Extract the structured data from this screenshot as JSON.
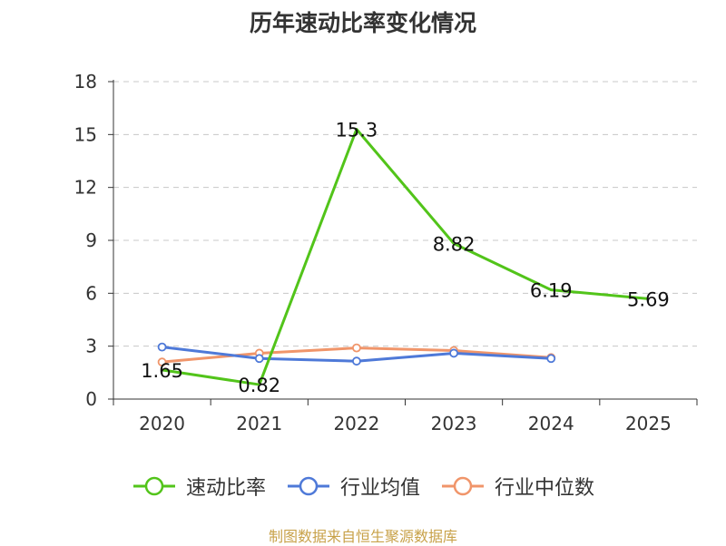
{
  "chart_data": {
    "type": "line",
    "title": "历年速动比率变化情况",
    "categories": [
      "2020",
      "2021",
      "2022",
      "2023",
      "2024",
      "2025"
    ],
    "ylim": [
      0,
      18
    ],
    "yticks": [
      "0",
      "3",
      "6",
      "9",
      "12",
      "15",
      "18"
    ],
    "grid": true,
    "legend_position": "bottom",
    "series": [
      {
        "name": "速动比率",
        "color": "#52c41a",
        "values": [
          1.65,
          0.82,
          15.3,
          8.82,
          6.19,
          5.69
        ],
        "labels": [
          "1.65",
          "0.82",
          "15.3",
          "8.82",
          "6.19",
          "5.69"
        ],
        "markers": false
      },
      {
        "name": "行业均值",
        "color": "#4e79d8",
        "values": [
          2.95,
          2.3,
          2.15,
          2.6,
          2.3,
          null
        ],
        "markers": true
      },
      {
        "name": "行业中位数",
        "color": "#f0956a",
        "values": [
          2.1,
          2.6,
          2.9,
          2.75,
          2.35,
          null
        ],
        "markers": true
      }
    ]
  },
  "source": "制图数据来自恒生聚源数据库"
}
